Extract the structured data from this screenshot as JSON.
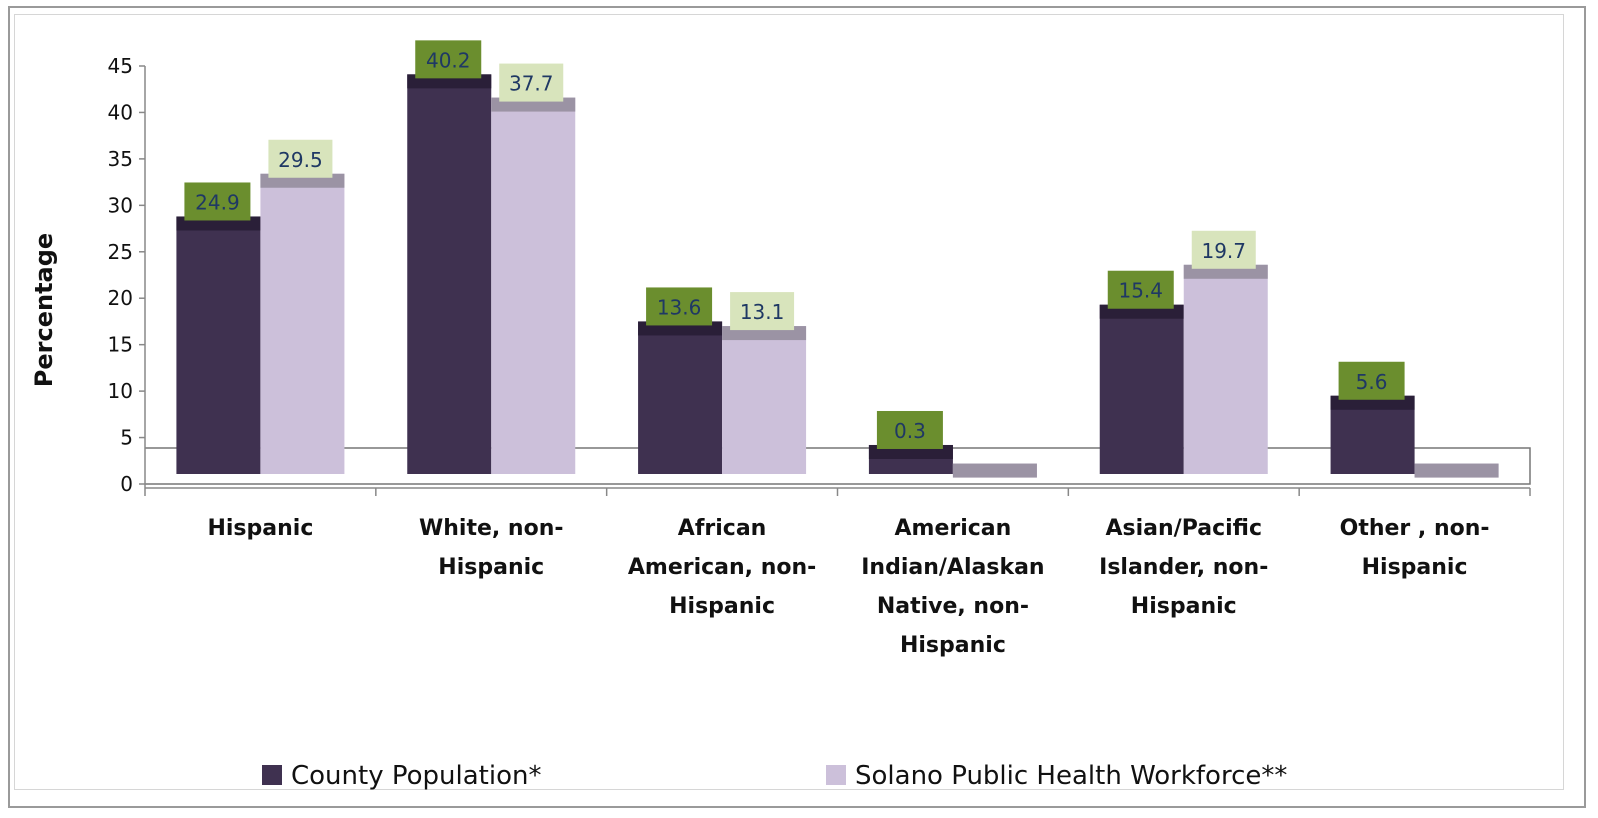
{
  "chart_data": {
    "type": "bar",
    "ylabel": "Percentage",
    "ylim": [
      0,
      45
    ],
    "yticks": [
      0,
      5,
      10,
      15,
      20,
      25,
      30,
      35,
      40,
      45
    ],
    "categories": [
      "Hispanic",
      "White, non-Hispanic",
      "African American, non-Hispanic",
      "American Indian/Alaskan Native, non-Hispanic",
      "Asian/Pacific Islander, non-Hispanic",
      "Other , non-Hispanic"
    ],
    "category_lines": [
      [
        "Hispanic"
      ],
      [
        "White, non-",
        "Hispanic"
      ],
      [
        "African",
        "American, non-",
        "Hispanic"
      ],
      [
        "American",
        "Indian/Alaskan",
        "Native, non-",
        "Hispanic"
      ],
      [
        "Asian/Pacific",
        "Islander, non-",
        "Hispanic"
      ],
      [
        "Other , non-",
        "Hispanic"
      ]
    ],
    "series": [
      {
        "name": "County Population*",
        "values": [
          24.9,
          40.2,
          13.6,
          0.3,
          15.4,
          5.6
        ],
        "labels": [
          "24.9",
          "40.2",
          "13.6",
          "0.3",
          "15.4",
          "5.6"
        ],
        "color": "#3f3150",
        "cap_color": "#2a1f38",
        "label_bg": "#6b8e2e",
        "label_color": "#1f3864"
      },
      {
        "name": "Solano Public Health Workforce**",
        "values": [
          29.5,
          37.7,
          13.1,
          0,
          19.7,
          0
        ],
        "labels": [
          "29.5",
          "37.7",
          "13.1",
          "",
          "19.7",
          ""
        ],
        "color": "#ccc0da",
        "cap_color": "#9b93a4",
        "label_bg": "#d8e4bc",
        "label_color": "#1f3864"
      }
    ],
    "grid": false,
    "legend_position": "bottom"
  }
}
